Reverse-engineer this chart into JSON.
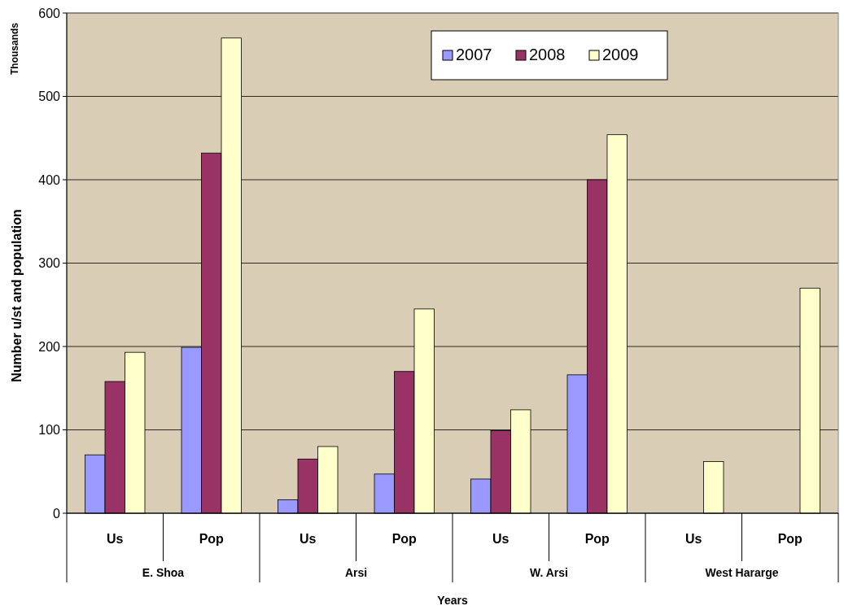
{
  "chart_data": {
    "type": "bar",
    "ylabel": "Number u/st and population",
    "xlabel": "Years",
    "categories": [
      "Us",
      "Pop",
      "Us",
      "Pop",
      "Us",
      "Pop",
      "Us",
      "Pop"
    ],
    "series": [
      {
        "name": "2007",
        "color": "#9999ff",
        "values": [
          70,
          199,
          16,
          47,
          41,
          166,
          null,
          null
        ]
      },
      {
        "name": "2008",
        "color": "#993366",
        "values": [
          158,
          432,
          65,
          170,
          99,
          400,
          null,
          null
        ]
      },
      {
        "name": "2009",
        "color": "#ffffcc",
        "values": [
          193,
          570,
          80,
          245,
          124,
          454,
          62,
          270
        ]
      }
    ],
    "ylim": [
      0,
      600
    ],
    "yticks": [
      0,
      100,
      200,
      300,
      400,
      500,
      600
    ],
    "grid": "y",
    "legend": "top",
    "annotations": [
      "Thousands",
      "E. Shoa",
      "Arsi",
      "W. Arsi",
      "West Hararge"
    ]
  }
}
